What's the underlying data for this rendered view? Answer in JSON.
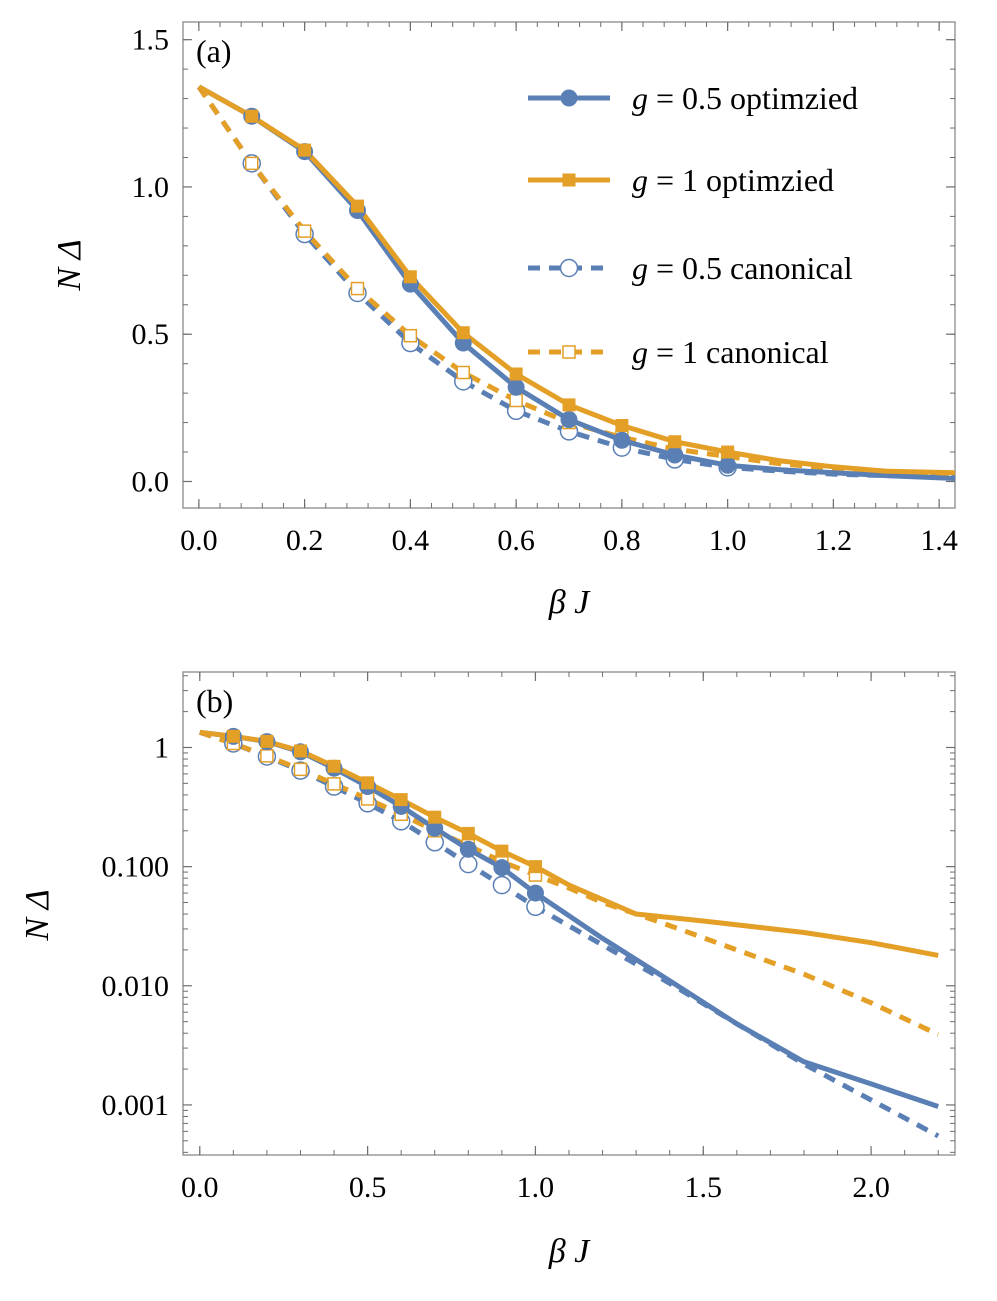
{
  "colors": {
    "blue": "#5a7fb5",
    "orange": "#e39f26",
    "frame": "#9a9a9a",
    "grid_tick": "#6e6e6e"
  },
  "chart_data": [
    {
      "id": "a",
      "panel_label": "(a)",
      "type": "line",
      "xlabel": "β J",
      "ylabel": "N Δ",
      "xlim": [
        -0.03,
        1.43
      ],
      "ylim": [
        -0.09,
        1.56
      ],
      "yscale": "linear",
      "x_ticks": [
        0.0,
        0.2,
        0.4,
        0.6,
        0.8,
        1.0,
        1.2,
        1.4
      ],
      "x_tick_labels": [
        "0.0",
        "0.2",
        "0.4",
        "0.6",
        "0.8",
        "1.0",
        "1.2",
        "1.4"
      ],
      "y_ticks": [
        0.0,
        0.5,
        1.0,
        1.5
      ],
      "y_tick_labels": [
        "0.0",
        "0.5",
        "1.0",
        "1.5"
      ],
      "legend": {
        "position": "top-right",
        "entries": [
          {
            "prefix": "g",
            "text": " = 0.5 optimzied",
            "series": "g05_opt"
          },
          {
            "prefix": "g",
            "text": " = 1 optimzied",
            "series": "g1_opt"
          },
          {
            "prefix": "g",
            "text": " = 0.5 canonical",
            "series": "g05_can"
          },
          {
            "prefix": "g",
            "text": " = 1 canonical",
            "series": "g1_can"
          }
        ]
      },
      "series": [
        {
          "key": "g05_opt",
          "name": "g = 0.5 optimzied",
          "color": "blue",
          "dashed": false,
          "marker": "filled-circle",
          "x": [
            0.0,
            0.1,
            0.2,
            0.3,
            0.4,
            0.5,
            0.6,
            0.7,
            0.8,
            0.9,
            1.0,
            1.1,
            1.2,
            1.3,
            1.43
          ],
          "y": [
            1.34,
            1.24,
            1.12,
            0.92,
            0.67,
            0.47,
            0.32,
            0.21,
            0.14,
            0.09,
            0.055,
            0.04,
            0.03,
            0.02,
            0.01
          ],
          "marker_x": [
            0.1,
            0.2,
            0.3,
            0.4,
            0.5,
            0.6,
            0.7,
            0.8,
            0.9,
            1.0
          ],
          "marker_y": [
            1.24,
            1.12,
            0.92,
            0.67,
            0.47,
            0.32,
            0.21,
            0.14,
            0.09,
            0.055
          ]
        },
        {
          "key": "g1_opt",
          "name": "g = 1 optimzied",
          "color": "orange",
          "dashed": false,
          "marker": "filled-square",
          "x": [
            0.0,
            0.1,
            0.2,
            0.3,
            0.4,
            0.5,
            0.6,
            0.7,
            0.8,
            0.9,
            1.0,
            1.1,
            1.2,
            1.3,
            1.43
          ],
          "y": [
            1.34,
            1.24,
            1.125,
            0.935,
            0.695,
            0.505,
            0.365,
            0.26,
            0.19,
            0.135,
            0.1,
            0.07,
            0.05,
            0.035,
            0.03
          ],
          "marker_x": [
            0.1,
            0.2,
            0.3,
            0.4,
            0.5,
            0.6,
            0.7,
            0.8,
            0.9,
            1.0
          ],
          "marker_y": [
            1.24,
            1.125,
            0.935,
            0.695,
            0.505,
            0.365,
            0.26,
            0.19,
            0.135,
            0.1
          ]
        },
        {
          "key": "g05_can",
          "name": "g = 0.5 canonical",
          "color": "blue",
          "dashed": true,
          "marker": "open-circle",
          "x": [
            0.0,
            0.1,
            0.2,
            0.3,
            0.4,
            0.5,
            0.6,
            0.7,
            0.8,
            0.9,
            1.0,
            1.1,
            1.2,
            1.3,
            1.43
          ],
          "y": [
            1.34,
            1.08,
            0.84,
            0.64,
            0.47,
            0.34,
            0.24,
            0.17,
            0.115,
            0.075,
            0.048,
            0.035,
            0.025,
            0.02,
            0.015
          ],
          "marker_x": [
            0.1,
            0.2,
            0.3,
            0.4,
            0.5,
            0.6,
            0.7,
            0.8,
            0.9,
            1.0
          ],
          "marker_y": [
            1.08,
            0.84,
            0.64,
            0.47,
            0.34,
            0.24,
            0.17,
            0.115,
            0.075,
            0.048
          ]
        },
        {
          "key": "g1_can",
          "name": "g = 1 canonical",
          "color": "orange",
          "dashed": true,
          "marker": "open-square",
          "x": [
            0.0,
            0.1,
            0.2,
            0.3,
            0.4,
            0.5,
            0.6,
            0.7,
            0.8,
            0.9,
            1.0,
            1.1,
            1.2,
            1.3,
            1.43
          ],
          "y": [
            1.34,
            1.08,
            0.85,
            0.655,
            0.495,
            0.37,
            0.275,
            0.2,
            0.15,
            0.11,
            0.085,
            0.06,
            0.045,
            0.035,
            0.025
          ],
          "marker_x": [
            0.1,
            0.2,
            0.3,
            0.4,
            0.5,
            0.6,
            0.7,
            0.8,
            0.9,
            1.0
          ],
          "marker_y": [
            1.08,
            0.85,
            0.655,
            0.495,
            0.37,
            0.275,
            0.2,
            0.15,
            0.11,
            0.085
          ]
        }
      ]
    },
    {
      "id": "b",
      "panel_label": "(b)",
      "type": "line",
      "xlabel": "β J",
      "ylabel": "N Δ",
      "xlim": [
        -0.05,
        2.25
      ],
      "ylim": [
        0.00038,
        4.3
      ],
      "yscale": "log",
      "x_ticks": [
        0.0,
        0.5,
        1.0,
        1.5,
        2.0
      ],
      "x_tick_labels": [
        "0.0",
        "0.5",
        "1.0",
        "1.5",
        "2.0"
      ],
      "y_ticks": [
        1,
        0.1,
        0.01,
        0.001
      ],
      "y_tick_labels": [
        "1",
        "0.100",
        "0.010",
        "0.001"
      ],
      "series": [
        {
          "key": "g05_opt",
          "name": "g = 0.5 optimzied",
          "color": "blue",
          "dashed": false,
          "marker": "filled-circle",
          "x": [
            0.0,
            0.1,
            0.2,
            0.3,
            0.4,
            0.5,
            0.6,
            0.7,
            0.8,
            0.9,
            1.0,
            1.2,
            1.4,
            1.6,
            1.8,
            2.0,
            2.2
          ],
          "y": [
            1.34,
            1.24,
            1.12,
            0.92,
            0.67,
            0.47,
            0.32,
            0.21,
            0.14,
            0.098,
            0.06,
            0.025,
            0.011,
            0.0048,
            0.0023,
            0.0015,
            0.00097
          ],
          "marker_x": [
            0.1,
            0.2,
            0.3,
            0.4,
            0.5,
            0.6,
            0.7,
            0.8,
            0.9,
            1.0
          ],
          "marker_y": [
            1.24,
            1.12,
            0.92,
            0.67,
            0.47,
            0.32,
            0.21,
            0.14,
            0.098,
            0.06
          ]
        },
        {
          "key": "g1_opt",
          "name": "g = 1 optimzied",
          "color": "orange",
          "dashed": false,
          "marker": "filled-square",
          "x": [
            0.0,
            0.1,
            0.2,
            0.3,
            0.4,
            0.5,
            0.6,
            0.7,
            0.8,
            0.9,
            1.0,
            1.1,
            1.3,
            1.5,
            1.8,
            2.0,
            2.2
          ],
          "y": [
            1.34,
            1.24,
            1.125,
            0.935,
            0.695,
            0.505,
            0.365,
            0.26,
            0.19,
            0.135,
            0.1,
            0.07,
            0.04,
            0.035,
            0.028,
            0.023,
            0.018
          ],
          "marker_x": [
            0.1,
            0.2,
            0.3,
            0.4,
            0.5,
            0.6,
            0.7,
            0.8,
            0.9,
            1.0
          ],
          "marker_y": [
            1.24,
            1.125,
            0.935,
            0.695,
            0.505,
            0.365,
            0.26,
            0.19,
            0.135,
            0.1
          ]
        },
        {
          "key": "g05_can",
          "name": "g = 0.5 canonical",
          "color": "blue",
          "dashed": true,
          "marker": "open-circle",
          "x": [
            0.0,
            0.1,
            0.2,
            0.3,
            0.4,
            0.5,
            0.6,
            0.7,
            0.8,
            0.9,
            1.0,
            1.2,
            1.4,
            1.6,
            1.8,
            2.0,
            2.2
          ],
          "y": [
            1.34,
            1.08,
            0.84,
            0.64,
            0.47,
            0.34,
            0.24,
            0.16,
            0.105,
            0.07,
            0.046,
            0.022,
            0.0105,
            0.0048,
            0.0022,
            0.0011,
            0.00055
          ],
          "marker_x": [
            0.1,
            0.2,
            0.3,
            0.4,
            0.5,
            0.6,
            0.7,
            0.8,
            0.9,
            1.0
          ],
          "marker_y": [
            1.08,
            0.84,
            0.64,
            0.47,
            0.34,
            0.24,
            0.16,
            0.105,
            0.07,
            0.046
          ]
        },
        {
          "key": "g1_can",
          "name": "g = 1 canonical",
          "color": "orange",
          "dashed": true,
          "marker": "open-square",
          "x": [
            0.0,
            0.1,
            0.2,
            0.3,
            0.4,
            0.5,
            0.6,
            0.7,
            0.8,
            0.9,
            1.0,
            1.1,
            1.2,
            1.4,
            1.6,
            1.8,
            2.0,
            2.2
          ],
          "y": [
            1.34,
            1.08,
            0.85,
            0.655,
            0.495,
            0.37,
            0.275,
            0.2,
            0.15,
            0.11,
            0.085,
            0.066,
            0.05,
            0.032,
            0.02,
            0.0125,
            0.0072,
            0.0039
          ],
          "marker_x": [
            0.1,
            0.2,
            0.3,
            0.4,
            0.5,
            0.6,
            0.7,
            0.8,
            0.9,
            1.0
          ],
          "marker_y": [
            1.08,
            0.85,
            0.655,
            0.495,
            0.37,
            0.275,
            0.2,
            0.15,
            0.11,
            0.085
          ]
        }
      ]
    }
  ]
}
